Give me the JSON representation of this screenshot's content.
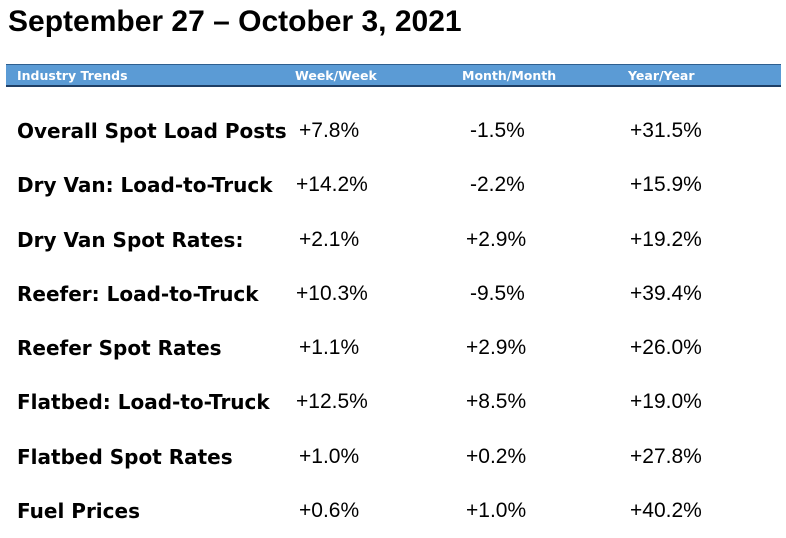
{
  "title": "September 27 – October 3, 2021",
  "header": {
    "label": "Industry Trends",
    "week": "Week/Week",
    "month": "Month/Month",
    "year": "Year/Year",
    "bar_color": "#5b9bd5"
  },
  "rows": [
    {
      "label": "Overall Spot Load Posts",
      "week": "+7.8%",
      "month": "-1.5%",
      "year": "+31.5%"
    },
    {
      "label": "Dry Van: Load-to-Truck",
      "week": "+14.2%",
      "month": "-2.2%",
      "year": "+15.9%"
    },
    {
      "label": "Dry Van Spot Rates:",
      "week": "+2.1%",
      "month": "+2.9%",
      "year": "+19.2%"
    },
    {
      "label": "Reefer: Load-to-Truck",
      "week": "+10.3%",
      "month": "-9.5%",
      "year": "+39.4%"
    },
    {
      "label": "Reefer Spot Rates",
      "week": "+1.1%",
      "month": "+2.9%",
      "year": "+26.0%"
    },
    {
      "label": "Flatbed: Load-to-Truck",
      "week": "+12.5%",
      "month": "+8.5%",
      "year": "+19.0%"
    },
    {
      "label": "Flatbed Spot Rates",
      "week": "+1.0%",
      "month": "+0.2%",
      "year": "+27.8%"
    },
    {
      "label": "Fuel Prices",
      "week": "+0.6%",
      "month": "+1.0%",
      "year": "+40.2%"
    }
  ]
}
